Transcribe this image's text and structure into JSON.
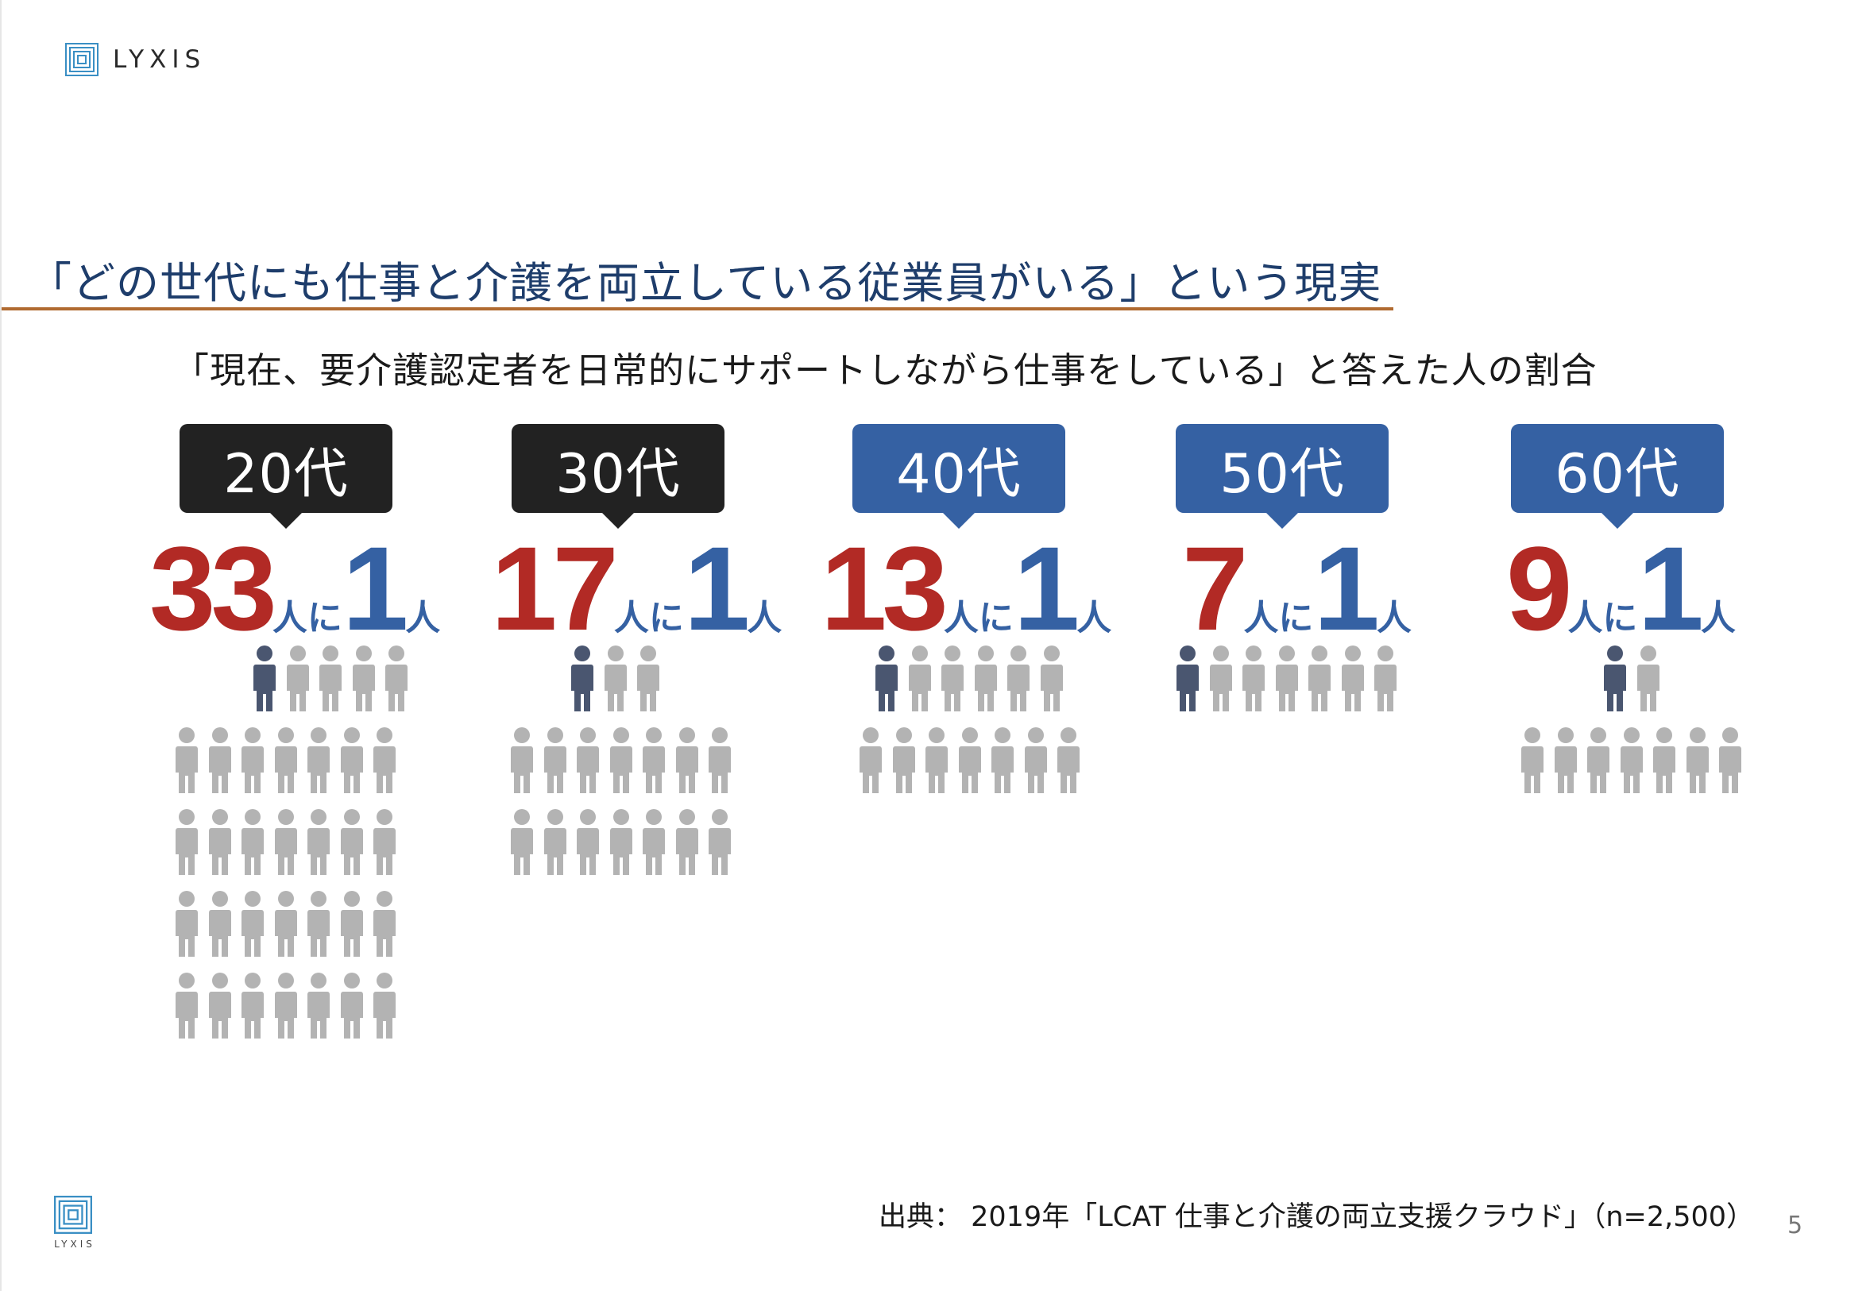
{
  "brand": {
    "name": "LYXIS"
  },
  "headline": "「どの世代にも仕事と介護を両立している従業員がいる」という現実",
  "subhead": "「現在、要介護認定者を日常的にサポートしながら仕事をしている」と答えた人の割合",
  "colors": {
    "heading": "#1e3d6b",
    "rule": "#b06a30",
    "dark_bubble": "#222222",
    "blue_bubble": "#3561a3",
    "red_number": "#b22a25",
    "blue_number": "#3561a3",
    "highlight_person": "#4a5670",
    "other_person": "#b3b3b3"
  },
  "ages": [
    {
      "label": "20代",
      "bubble_style": "dark",
      "ratio_n": "33",
      "mid": "人に",
      "ratio_one": "1",
      "unit": "人",
      "total_people": 33
    },
    {
      "label": "30代",
      "bubble_style": "dark",
      "ratio_n": "17",
      "mid": "人に",
      "ratio_one": "1",
      "unit": "人",
      "total_people": 17
    },
    {
      "label": "40代",
      "bubble_style": "blue",
      "ratio_n": "13",
      "mid": "人に",
      "ratio_one": "1",
      "unit": "人",
      "total_people": 13
    },
    {
      "label": "50代",
      "bubble_style": "blue",
      "ratio_n": "7",
      "mid": "人に",
      "ratio_one": "1",
      "unit": "人",
      "total_people": 7
    },
    {
      "label": "60代",
      "bubble_style": "blue",
      "ratio_n": "9",
      "mid": "人に",
      "ratio_one": "1",
      "unit": "人",
      "total_people": 9
    }
  ],
  "source": "出典： 2019年「LCAT 仕事と介護の両立支援クラウド」（n=2,500）",
  "page_number": "5",
  "icons": {
    "person": "person-icon",
    "logo": "lyxis-logo-icon"
  }
}
